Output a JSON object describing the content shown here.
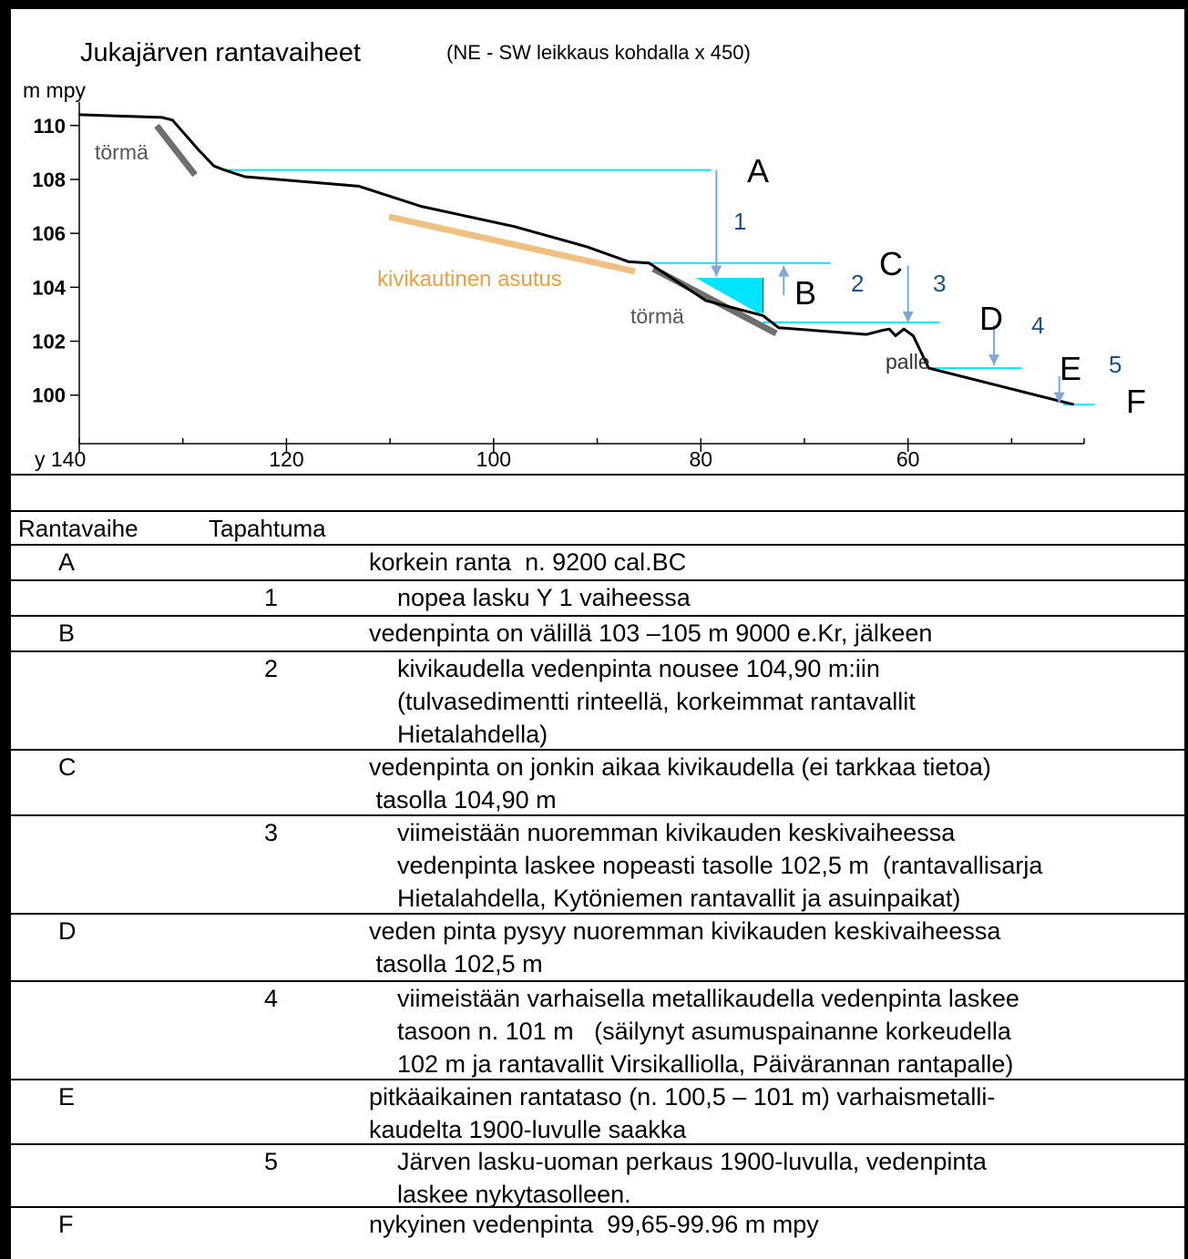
{
  "figure": {
    "title": "Jukajärven rantavaiheet",
    "subtitle": "(NE - SW leikkaus kohdalla x 450)",
    "y_axis_label": "m mpy",
    "x_axis_first_label": "y 140"
  },
  "chart_data": {
    "type": "line",
    "xlim": [
      140,
      43
    ],
    "ylim": [
      98.2,
      110.6
    ],
    "x_ticks": [
      140,
      120,
      100,
      80,
      60
    ],
    "x_tick_labels": [
      "y 140",
      "120",
      "100",
      "80",
      "60"
    ],
    "y_ticks": [
      110,
      108,
      106,
      104,
      102,
      100
    ],
    "y_tick_labels": [
      "110",
      "108",
      "106",
      "104",
      "102",
      "100"
    ],
    "profile": [
      [
        140,
        110.4
      ],
      [
        132,
        110.3
      ],
      [
        131,
        110.2
      ],
      [
        128.5,
        109.1
      ],
      [
        127,
        108.5
      ],
      [
        126,
        108.35
      ],
      [
        124,
        108.1
      ],
      [
        113,
        107.75
      ],
      [
        107,
        107.0
      ],
      [
        98,
        106.25
      ],
      [
        91,
        105.5
      ],
      [
        87,
        104.95
      ],
      [
        85,
        104.9
      ],
      [
        79.5,
        103.5
      ],
      [
        74,
        102.95
      ],
      [
        72.5,
        102.5
      ],
      [
        64,
        102.25
      ],
      [
        62.5,
        102.4
      ],
      [
        61.8,
        102.45
      ],
      [
        61.2,
        102.2
      ],
      [
        60.4,
        102.45
      ],
      [
        59.5,
        102.2
      ],
      [
        58,
        101.0
      ],
      [
        44,
        99.65
      ]
    ],
    "shorelines": [
      {
        "label": "A",
        "y": 108.35,
        "x_from": 126,
        "x_to": 79
      },
      {
        "label": "C",
        "y": 104.9,
        "x_from": 86,
        "x_to": 67.5
      },
      {
        "label": "D",
        "y": 102.7,
        "x_from": 74,
        "x_to": 57
      },
      {
        "label": "E",
        "y": 101.0,
        "x_from": 58,
        "x_to": 49
      },
      {
        "label": "F",
        "y": 99.65,
        "x_from": 45,
        "x_to": 42
      }
    ],
    "level_B": {
      "label": "B",
      "y_top": 104.35,
      "y_bottom": 103.05,
      "x_right": 74
    },
    "events": [
      {
        "label": "1",
        "x": 78.5,
        "y_from": 108.35,
        "y_to": 104.4,
        "direction": "down"
      },
      {
        "label": "2",
        "x": 72,
        "y_from": 103.7,
        "y_to": 104.8,
        "direction": "up"
      },
      {
        "label": "3",
        "x": 60,
        "y_from": 104.8,
        "y_to": 102.7,
        "direction": "down"
      },
      {
        "label": "4",
        "x": 51.7,
        "y_from": 102.6,
        "y_to": 101.1,
        "direction": "down"
      },
      {
        "label": "5",
        "x": 45.4,
        "y_from": 100.7,
        "y_to": 99.7,
        "direction": "down"
      }
    ],
    "annotations": [
      "törmä",
      "törmä",
      "kivikautinen asutus",
      "palle"
    ],
    "colors": {
      "profile": "#000000",
      "shoreline": "#00e5ff",
      "arrow": "#7fa8d8",
      "event_label": "#1f4e8c",
      "settlement": "#f0c080",
      "scarp": "#6e6e6e",
      "settlement_text": "#e8a040",
      "annotation_text": "#555555"
    }
  },
  "table": {
    "headers": [
      "Rantavaihe",
      "Tapahtuma"
    ],
    "rows": [
      {
        "phase": "A",
        "event": "",
        "lines": [
          "korkein ranta  n. 9200 cal.BC"
        ]
      },
      {
        "phase": "",
        "event": "1",
        "lines": [
          "nopea lasku Y 1 vaiheessa"
        ]
      },
      {
        "phase": "B",
        "event": "",
        "lines": [
          "vedenpinta on välillä 103 –105 m 9000 e.Kr, jälkeen"
        ]
      },
      {
        "phase": "",
        "event": "2",
        "lines": [
          "kivikaudella vedenpinta nousee 104,90 m:iin",
          "(tulvasedimentti rinteellä, korkeimmat rantavallit",
          "Hietalahdella)"
        ]
      },
      {
        "phase": "C",
        "event": "",
        "lines": [
          "vedenpinta on jonkin aikaa kivikaudella (ei tarkkaa tietoa)",
          " tasolla 104,90 m"
        ]
      },
      {
        "phase": "",
        "event": "3",
        "lines": [
          "viimeistään nuoremman kivikauden keskivaiheessa",
          "vedenpinta laskee nopeasti tasolle 102,5 m  (rantavallisarja",
          "Hietalahdella, Kytöniemen rantavallit ja asuinpaikat)"
        ]
      },
      {
        "phase": "D",
        "event": "",
        "lines": [
          "veden pinta pysyy nuoremman kivikauden keskivaiheessa",
          " tasolla 102,5 m"
        ]
      },
      {
        "phase": "",
        "event": "4",
        "lines": [
          "viimeistään varhaisella metallikaudella vedenpinta laskee",
          "tasoon n. 101 m   (säilynyt asumuspainanne korkeudella",
          "102 m ja rantavallit Virsikalliolla, Päivärannan rantapalle)"
        ]
      },
      {
        "phase": "E",
        "event": "",
        "lines": [
          "pitkäaikainen rantataso (n. 100,5 – 101 m) varhaismetalli-",
          "kaudelta 1900-luvulle saakka"
        ]
      },
      {
        "phase": "",
        "event": "5",
        "lines": [
          "Järven lasku-uoman perkaus 1900-luvulla, vedenpinta",
          "laskee nykytasolleen."
        ]
      },
      {
        "phase": "F",
        "event": "",
        "lines": [
          "nykyinen vedenpinta  99,65-99.96 m mpy"
        ]
      }
    ]
  }
}
